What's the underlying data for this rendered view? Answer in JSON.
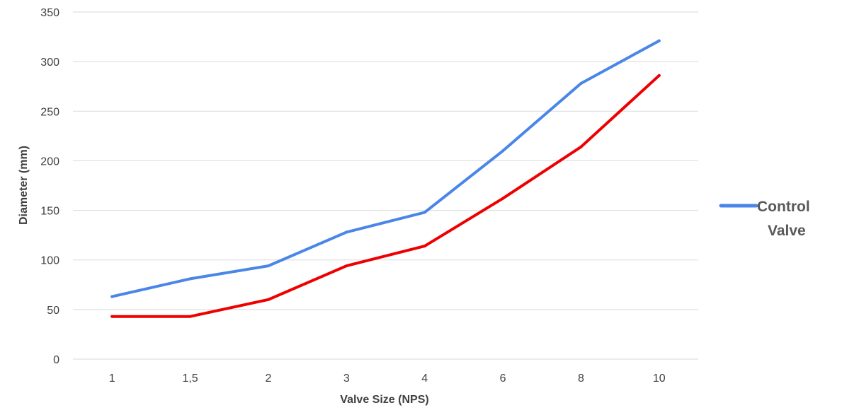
{
  "chart_data": {
    "type": "line",
    "title": "",
    "xlabel": "Valve Size (NPS)",
    "ylabel": "Diameter (mm)",
    "categories": [
      "1",
      "1,5",
      "2",
      "3",
      "4",
      "6",
      "8",
      "10"
    ],
    "ylim": [
      0,
      350
    ],
    "yticks": [
      0,
      50,
      100,
      150,
      200,
      250,
      300,
      350
    ],
    "grid": true,
    "legend_position": "right",
    "series": [
      {
        "name": "Control Valve",
        "color": "#4a86e8",
        "values": [
          63,
          81,
          94,
          128,
          148,
          210,
          278,
          321
        ]
      },
      {
        "color": "#ee0000",
        "values": [
          43,
          43,
          60,
          94,
          114,
          162,
          214,
          286
        ]
      }
    ]
  }
}
